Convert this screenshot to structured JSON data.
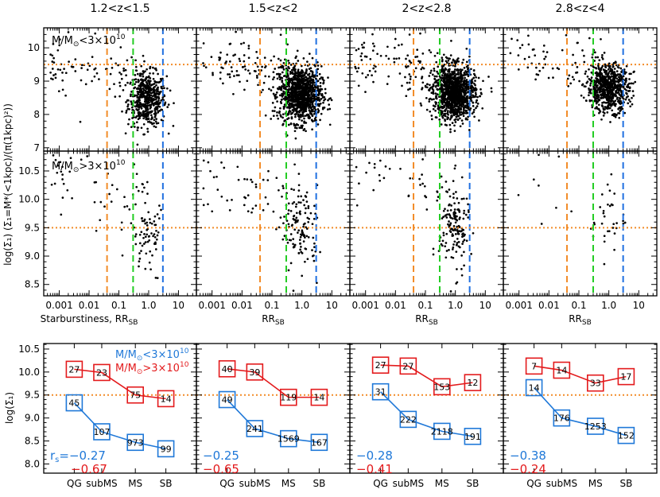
{
  "colors": {
    "orange": "#f28c28",
    "green": "#22cc22",
    "blue": "#1f6fe0",
    "red": "#e31a1c",
    "low_mass_series": "#1f78d8",
    "high_mass_series": "#e31a1c",
    "points": "#000000"
  },
  "chart_data": [
    {
      "type": "scatter",
      "panel": "top",
      "column_titles": [
        "1.2<z<1.5",
        "1.5<z<2",
        "2<z<2.8",
        "2.8<z<4"
      ],
      "annotation": "M/M⊙<3×10¹⁰",
      "ylabel": "log(Σ₁) (Σ₁=M*(<1kpc)/(π(1kpc)²))",
      "xscale": "log",
      "xlim": [
        0.0003,
        40
      ],
      "ylim": [
        6.9,
        10.6
      ],
      "yticks": [
        7,
        8,
        9,
        10
      ],
      "vertical_lines": [
        {
          "x": 0.04,
          "color": "orange",
          "style": "dashed"
        },
        {
          "x": 0.3,
          "color": "green",
          "style": "dashed"
        },
        {
          "x": 3.0,
          "color": "blue",
          "style": "dashed"
        }
      ],
      "horizontal_line": {
        "y": 9.5,
        "color": "orange",
        "style": "dotted"
      },
      "clouds": [
        {
          "center_x": 0.9,
          "center_y": 8.45,
          "spread_logx": 0.32,
          "spread_y": 0.4,
          "n_core": 520,
          "n_tail": 90
        },
        {
          "center_x": 0.9,
          "center_y": 8.6,
          "spread_logx": 0.35,
          "spread_y": 0.42,
          "n_core": 1100,
          "n_tail": 110
        },
        {
          "center_x": 0.9,
          "center_y": 8.65,
          "spread_logx": 0.35,
          "spread_y": 0.4,
          "n_core": 1200,
          "n_tail": 110
        },
        {
          "center_x": 0.95,
          "center_y": 8.8,
          "spread_logx": 0.35,
          "spread_y": 0.35,
          "n_core": 700,
          "n_tail": 70
        }
      ]
    },
    {
      "type": "scatter",
      "panel": "middle",
      "annotation": "M/M⊙>3×10¹⁰",
      "xlabels": [
        "Starburstiness, RSB",
        "RSB",
        "RSB",
        "RSB"
      ],
      "xscale": "log",
      "xlim": [
        0.0003,
        40
      ],
      "ylim": [
        8.3,
        10.85
      ],
      "xticks": [
        {
          "value": 0.001,
          "label": "0.001"
        },
        {
          "value": 0.01,
          "label": "0.01"
        },
        {
          "value": 0.1,
          "label": "0.1"
        },
        {
          "value": 1.0,
          "label": "1.0"
        },
        {
          "value": 10,
          "label": "10"
        }
      ],
      "yticks": [
        {
          "value": 8.5,
          "label": "8.5"
        },
        {
          "value": 9.0,
          "label": "9.0"
        },
        {
          "value": 9.5,
          "label": "9.5"
        },
        {
          "value": 10.0,
          "label": "10.0"
        },
        {
          "value": 10.5,
          "label": "10.5"
        }
      ],
      "clouds": [
        {
          "center_x": 0.9,
          "center_y": 9.45,
          "spread_logx": 0.3,
          "spread_y": 0.4,
          "n_core": 75,
          "n_tail": 50
        },
        {
          "center_x": 0.9,
          "center_y": 9.45,
          "spread_logx": 0.3,
          "spread_y": 0.38,
          "n_core": 120,
          "n_tail": 60
        },
        {
          "center_x": 0.9,
          "center_y": 9.5,
          "spread_logx": 0.25,
          "spread_y": 0.4,
          "n_core": 150,
          "n_tail": 40
        },
        {
          "center_x": 0.9,
          "center_y": 9.7,
          "spread_logx": 0.3,
          "spread_y": 0.35,
          "n_core": 33,
          "n_tail": 15
        }
      ]
    },
    {
      "type": "line",
      "panel": "bottom",
      "categories": [
        "QG",
        "subMS",
        "MS",
        "SB"
      ],
      "ylabel": "log(Σ₁)",
      "ylim": [
        7.8,
        10.62
      ],
      "yticks": [
        {
          "value": 8.0,
          "label": "8.0"
        },
        {
          "value": 8.5,
          "label": "8.5"
        },
        {
          "value": 9.0,
          "label": "9.0"
        },
        {
          "value": 9.5,
          "label": "9.5"
        },
        {
          "value": 10.0,
          "label": "10.0"
        },
        {
          "value": 10.5,
          "label": "10.5"
        }
      ],
      "horizontal_line": {
        "y": 9.5,
        "color": "orange",
        "style": "dotted"
      },
      "legend": [
        {
          "text": "M/M⊙<3×10¹⁰",
          "color": "low_mass_series"
        },
        {
          "text": "M/M⊙>3×10¹⁰",
          "color": "high_mass_series"
        }
      ],
      "columns": [
        {
          "low": {
            "values": [
              9.33,
              8.7,
              8.47,
              8.33
            ],
            "counts": [
              "45",
              "107",
              "973",
              "99"
            ]
          },
          "high": {
            "values": [
              10.06,
              9.99,
              9.5,
              9.42
            ],
            "counts": [
              "27",
              "23",
              "75",
              "14"
            ]
          },
          "rs_prefix": "r",
          "rs_sub": "s",
          "rs_low": "=−0.27",
          "rs_high": "−0.67"
        },
        {
          "low": {
            "values": [
              9.4,
              8.77,
              8.55,
              8.47
            ],
            "counts": [
              "49",
              "241",
              "1569",
              "167"
            ]
          },
          "high": {
            "values": [
              10.07,
              10.0,
              9.45,
              9.45
            ],
            "counts": [
              "40",
              "39",
              "119",
              "14"
            ]
          },
          "rs_prefix": "",
          "rs_sub": "",
          "rs_low": "−0.25",
          "rs_high": "−0.65"
        },
        {
          "low": {
            "values": [
              9.57,
              8.97,
              8.71,
              8.6
            ],
            "counts": [
              "31",
              "222",
              "2118",
              "191"
            ]
          },
          "high": {
            "values": [
              10.15,
              10.13,
              9.68,
              9.77
            ],
            "counts": [
              "27",
              "27",
              "153",
              "12"
            ]
          },
          "rs_prefix": "",
          "rs_sub": "",
          "rs_low": "−0.28",
          "rs_high": "−0.41"
        },
        {
          "low": {
            "values": [
              9.66,
              9.0,
              8.82,
              8.62
            ],
            "counts": [
              "14",
              "176",
              "1253",
              "152"
            ]
          },
          "high": {
            "values": [
              10.13,
              10.04,
              9.76,
              9.9
            ],
            "counts": [
              "7",
              "14",
              "33",
              "17"
            ]
          },
          "rs_prefix": "",
          "rs_sub": "",
          "rs_low": "−0.38",
          "rs_high": "−0.24"
        }
      ]
    }
  ]
}
